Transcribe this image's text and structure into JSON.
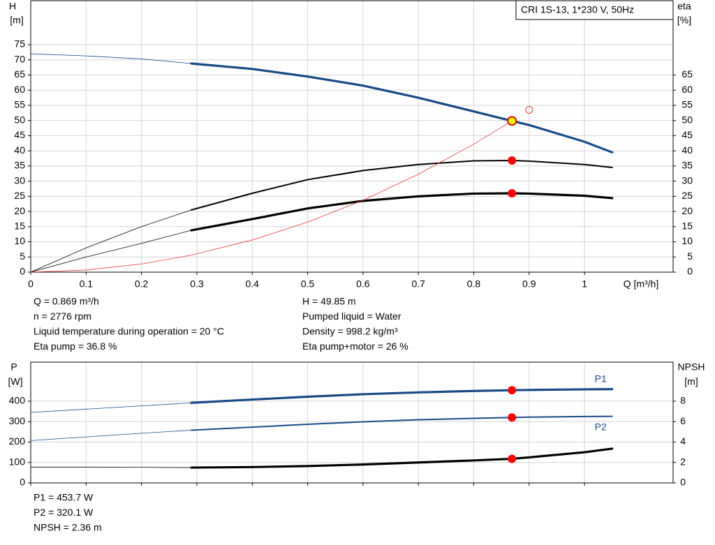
{
  "chart_data": [
    {
      "type": "line",
      "title": "CRI 1S-13, 1*230 V, 50Hz",
      "ylabel": "H",
      "yunit": "[m]",
      "y2label": "eta",
      "y2unit": "[%]",
      "xlabel": "Q [m³/h]",
      "xlim": [
        0,
        1.16
      ],
      "ylim": [
        0,
        89.5
      ],
      "y2lim": [
        0,
        89.5
      ],
      "xticks": [
        0,
        0.1,
        0.2,
        0.3,
        0.4,
        0.5,
        0.6,
        0.7,
        0.8,
        0.9,
        1.0
      ],
      "yticks": [
        0,
        5,
        10,
        15,
        20,
        25,
        30,
        35,
        40,
        45,
        50,
        55,
        60,
        65,
        70,
        75
      ],
      "y2ticks": [
        0,
        5,
        10,
        15,
        20,
        25,
        30,
        35,
        40,
        45,
        50,
        55,
        60,
        65
      ],
      "grid": true,
      "series": [
        {
          "color": "#174a87",
          "style": "thin",
          "axis": "y",
          "x": [
            0,
            0.1,
            0.2,
            0.29
          ],
          "values": [
            72,
            71.3,
            70.3,
            68.8
          ]
        },
        {
          "color": "#174a87",
          "style": "thick",
          "axis": "y",
          "x": [
            0.29,
            0.4,
            0.5,
            0.6,
            0.7,
            0.8,
            0.869,
            0.9,
            1.0,
            1.05
          ],
          "values": [
            68.8,
            67,
            64.5,
            61.5,
            57.5,
            53,
            49.85,
            48.5,
            43,
            39.5
          ]
        },
        {
          "color": "#000000",
          "style": "thin",
          "axis": "y2",
          "x": [
            0,
            0.1,
            0.2,
            0.29
          ],
          "values": [
            0,
            8,
            15,
            20.5
          ]
        },
        {
          "color": "#000000",
          "style": "medium",
          "axis": "y2",
          "x": [
            0.29,
            0.4,
            0.5,
            0.6,
            0.7,
            0.8,
            0.869,
            0.9,
            1.0,
            1.05
          ],
          "values": [
            20.5,
            26,
            30.5,
            33.5,
            35.5,
            36.7,
            36.8,
            36.6,
            35.5,
            34.5
          ]
        },
        {
          "color": "#000000",
          "style": "thin",
          "axis": "y2",
          "x": [
            0,
            0.1,
            0.2,
            0.29
          ],
          "values": [
            0,
            5,
            9.5,
            13.8
          ]
        },
        {
          "color": "#000000",
          "style": "thick",
          "axis": "y2",
          "x": [
            0.29,
            0.4,
            0.5,
            0.6,
            0.7,
            0.8,
            0.869,
            0.9,
            1.0,
            1.05
          ],
          "values": [
            13.8,
            17.5,
            21,
            23.5,
            25,
            25.9,
            26,
            25.9,
            25.2,
            24.4
          ]
        },
        {
          "color": "#e83a3a",
          "style": "hair",
          "axis": "y",
          "x": [
            0,
            0.1,
            0.2,
            0.29,
            0.4,
            0.5,
            0.6,
            0.7,
            0.8,
            0.869
          ],
          "values": [
            0,
            0.7,
            2.7,
            5.6,
            10.6,
            16.5,
            23.7,
            32.3,
            42.2,
            49.85
          ]
        }
      ],
      "points": [
        {
          "x": 0.9,
          "y": 53.5,
          "axis": "y",
          "color": "#e83a3a",
          "open": true
        },
        {
          "x": 0.869,
          "y": 36.8,
          "axis": "y2",
          "color": "#ff0000"
        },
        {
          "x": 0.869,
          "y": 26,
          "axis": "y2",
          "color": "#ff0000"
        },
        {
          "x": 0.869,
          "y": 49.85,
          "axis": "y",
          "color": "#ffff00"
        }
      ],
      "info": [
        [
          "Q = 0.869 m³/h",
          "n = 2776 rpm",
          "Liquid temperature during operation = 20 °C",
          "Eta pump = 36.8 %"
        ],
        [
          "H = 49.85 m",
          "Pumped liquid = Water",
          "Density = 998.2 kg/m³",
          "Eta pump+motor = 26 %"
        ]
      ]
    },
    {
      "type": "line",
      "ylabel": "P",
      "yunit": "[W]",
      "y2label": "NPSH",
      "y2unit": "[m]",
      "xlim": [
        0,
        1.16
      ],
      "ylim": [
        0,
        591
      ],
      "y2lim": [
        0,
        11.82
      ],
      "yticks": [
        0,
        100,
        200,
        300,
        400
      ],
      "y2ticks": [
        0,
        2,
        4,
        6,
        8
      ],
      "grid": true,
      "series": [
        {
          "color": "#174a87",
          "style": "thin",
          "axis": "y",
          "x": [
            0,
            0.1,
            0.2,
            0.29
          ],
          "values": [
            345,
            361,
            377,
            392
          ]
        },
        {
          "name": "P1",
          "label_side": "above",
          "color": "#174a87",
          "style": "thick",
          "axis": "y",
          "x": [
            0.29,
            0.4,
            0.5,
            0.6,
            0.7,
            0.8,
            0.869,
            0.9,
            1.0,
            1.05
          ],
          "values": [
            392,
            408,
            422,
            434,
            443,
            450,
            453.7,
            455,
            458,
            459
          ]
        },
        {
          "color": "#174a87",
          "style": "thin",
          "axis": "y",
          "x": [
            0,
            0.1,
            0.2,
            0.29
          ],
          "values": [
            207,
            225,
            243,
            258
          ]
        },
        {
          "name": "P2",
          "label_side": "below",
          "color": "#174a87",
          "style": "medium",
          "axis": "y",
          "x": [
            0.29,
            0.4,
            0.5,
            0.6,
            0.7,
            0.8,
            0.869,
            0.9,
            1.0,
            1.05
          ],
          "values": [
            258,
            273,
            287,
            299,
            309,
            316,
            320.1,
            322,
            325,
            326
          ]
        },
        {
          "color": "#000000",
          "style": "thin",
          "axis": "y2",
          "x": [
            0,
            0.1,
            0.2,
            0.29
          ],
          "values": [
            1.55,
            1.55,
            1.53,
            1.5
          ]
        },
        {
          "color": "#000000",
          "style": "thick",
          "axis": "y2",
          "x": [
            0.29,
            0.4,
            0.5,
            0.6,
            0.7,
            0.8,
            0.869,
            0.9,
            1.0,
            1.05
          ],
          "values": [
            1.5,
            1.55,
            1.65,
            1.8,
            2.0,
            2.2,
            2.36,
            2.5,
            3.0,
            3.35
          ]
        }
      ],
      "points": [
        {
          "x": 0.869,
          "y": 453.7,
          "axis": "y",
          "color": "#ff0000"
        },
        {
          "x": 0.869,
          "y": 320.1,
          "axis": "y",
          "color": "#ff0000"
        },
        {
          "x": 0.869,
          "y": 2.36,
          "axis": "y2",
          "color": "#ff0000"
        }
      ],
      "info": [
        [
          "P1 = 453.7 W",
          "P2 = 320.1 W",
          "NPSH = 2.36 m"
        ]
      ]
    }
  ]
}
